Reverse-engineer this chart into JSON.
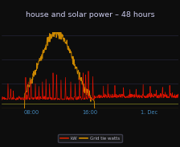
{
  "title": "house and solar power – 48 hours",
  "background_color": "#0d0d0d",
  "plot_bg_color": "#0d0d0d",
  "grid_color": "#2a2a44",
  "title_color": "#ccccee",
  "tick_color": "#4488bb",
  "legend_labels": [
    "kW",
    "Grid tie watts"
  ],
  "legend_line_colors": [
    "#cc2200",
    "#cc8800"
  ],
  "x_ticks": [
    0.333,
    1.0,
    1.667
  ],
  "x_tick_labels": [
    "08:00",
    "16:00",
    "1. Dec"
  ],
  "ylim": [
    0.0,
    1.0
  ],
  "xlim": [
    0,
    2
  ],
  "line_color_red": "#dd1100",
  "line_color_gold": "#cc8800",
  "baseline_color": "#888822",
  "baseline_y": 0.055
}
